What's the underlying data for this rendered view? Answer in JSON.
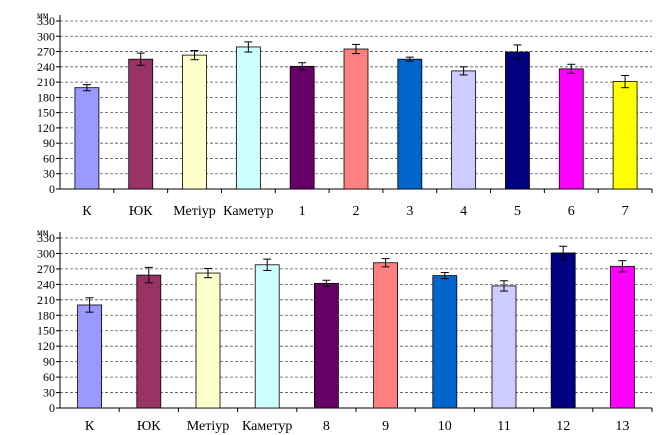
{
  "chart_data": [
    {
      "type": "bar",
      "ylabel": "мм",
      "ylim": [
        0,
        330
      ],
      "yticks": [
        0,
        30,
        60,
        90,
        120,
        150,
        180,
        210,
        240,
        270,
        300,
        330
      ],
      "grid": true,
      "categories": [
        "К",
        "ЮК",
        "Метіур",
        "Каметур",
        "1",
        "2",
        "3",
        "4",
        "5",
        "6",
        "7"
      ],
      "values": [
        199,
        255,
        263,
        279,
        241,
        275,
        255,
        232,
        269,
        236,
        211
      ],
      "errors": [
        6,
        12,
        9,
        10,
        7,
        9,
        4,
        8,
        14,
        9,
        12
      ],
      "colors": [
        "#9999ff",
        "#993366",
        "#ffffcc",
        "#ccffff",
        "#660066",
        "#ff8080",
        "#0066cc",
        "#ccccff",
        "#000080",
        "#ff00ff",
        "#ffff00"
      ]
    },
    {
      "type": "bar",
      "ylabel": "мм",
      "ylim": [
        0,
        330
      ],
      "yticks": [
        0,
        30,
        60,
        90,
        120,
        150,
        180,
        210,
        240,
        270,
        300,
        330
      ],
      "grid": true,
      "categories": [
        "К",
        "ЮК",
        "Метіур",
        "Каметур",
        "8",
        "9",
        "10",
        "11",
        "12",
        "13"
      ],
      "values": [
        200,
        258,
        262,
        278,
        242,
        282,
        257,
        237,
        301,
        275
      ],
      "errors": [
        14,
        15,
        9,
        11,
        6,
        8,
        6,
        10,
        13,
        11
      ],
      "colors": [
        "#9999ff",
        "#993366",
        "#ffffcc",
        "#ccffff",
        "#660066",
        "#ff8080",
        "#0066cc",
        "#ccccff",
        "#000080",
        "#ff00ff"
      ]
    }
  ]
}
